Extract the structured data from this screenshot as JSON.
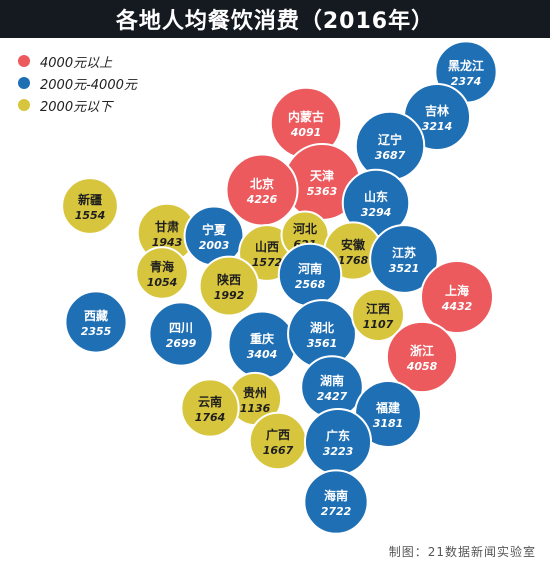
{
  "colors": {
    "high": "#ec5a5e",
    "mid": "#1f6fb5",
    "low": "#d8c53e",
    "title_bg": "#151a21"
  },
  "chart_data": {
    "type": "scatter",
    "title": "各地人均餐饮消费（2016年）",
    "legend": [
      {
        "key": "high",
        "label": "4000元以上"
      },
      {
        "key": "mid",
        "label": "2000元-4000元"
      },
      {
        "key": "low",
        "label": "2000元以下"
      }
    ],
    "legend_position": "top-left",
    "unit": "元",
    "points": [
      {
        "name": "黑龙江",
        "value": 2374,
        "group": "mid"
      },
      {
        "name": "吉林",
        "value": 3214,
        "group": "mid"
      },
      {
        "name": "辽宁",
        "value": 3687,
        "group": "mid"
      },
      {
        "name": "内蒙古",
        "value": 4091,
        "group": "high"
      },
      {
        "name": "天津",
        "value": 5363,
        "group": "high"
      },
      {
        "name": "北京",
        "value": 4226,
        "group": "high"
      },
      {
        "name": "山东",
        "value": 3294,
        "group": "mid"
      },
      {
        "name": "新疆",
        "value": 1554,
        "group": "low"
      },
      {
        "name": "甘肃",
        "value": 1943,
        "group": "low"
      },
      {
        "name": "宁夏",
        "value": 2003,
        "group": "mid"
      },
      {
        "name": "山西",
        "value": 1572,
        "group": "low"
      },
      {
        "name": "河北",
        "value": 621,
        "group": "low"
      },
      {
        "name": "安徽",
        "value": 1768,
        "group": "low"
      },
      {
        "name": "江苏",
        "value": 3521,
        "group": "mid"
      },
      {
        "name": "青海",
        "value": 1054,
        "group": "low"
      },
      {
        "name": "陕西",
        "value": 1992,
        "group": "low"
      },
      {
        "name": "河南",
        "value": 2568,
        "group": "mid"
      },
      {
        "name": "上海",
        "value": 4432,
        "group": "high"
      },
      {
        "name": "西藏",
        "value": 2355,
        "group": "mid"
      },
      {
        "name": "四川",
        "value": 2699,
        "group": "mid"
      },
      {
        "name": "重庆",
        "value": 3404,
        "group": "mid"
      },
      {
        "name": "湖北",
        "value": 3561,
        "group": "mid"
      },
      {
        "name": "江西",
        "value": 1107,
        "group": "low"
      },
      {
        "name": "浙江",
        "value": 4058,
        "group": "high"
      },
      {
        "name": "湖南",
        "value": 2427,
        "group": "mid"
      },
      {
        "name": "贵州",
        "value": 1136,
        "group": "low"
      },
      {
        "name": "云南",
        "value": 1764,
        "group": "low"
      },
      {
        "name": "福建",
        "value": 3181,
        "group": "mid"
      },
      {
        "name": "广西",
        "value": 1667,
        "group": "low"
      },
      {
        "name": "广东",
        "value": 3223,
        "group": "mid"
      },
      {
        "name": "海南",
        "value": 2722,
        "group": "mid"
      }
    ]
  },
  "credit": "制图：21数据新闻实验室"
}
